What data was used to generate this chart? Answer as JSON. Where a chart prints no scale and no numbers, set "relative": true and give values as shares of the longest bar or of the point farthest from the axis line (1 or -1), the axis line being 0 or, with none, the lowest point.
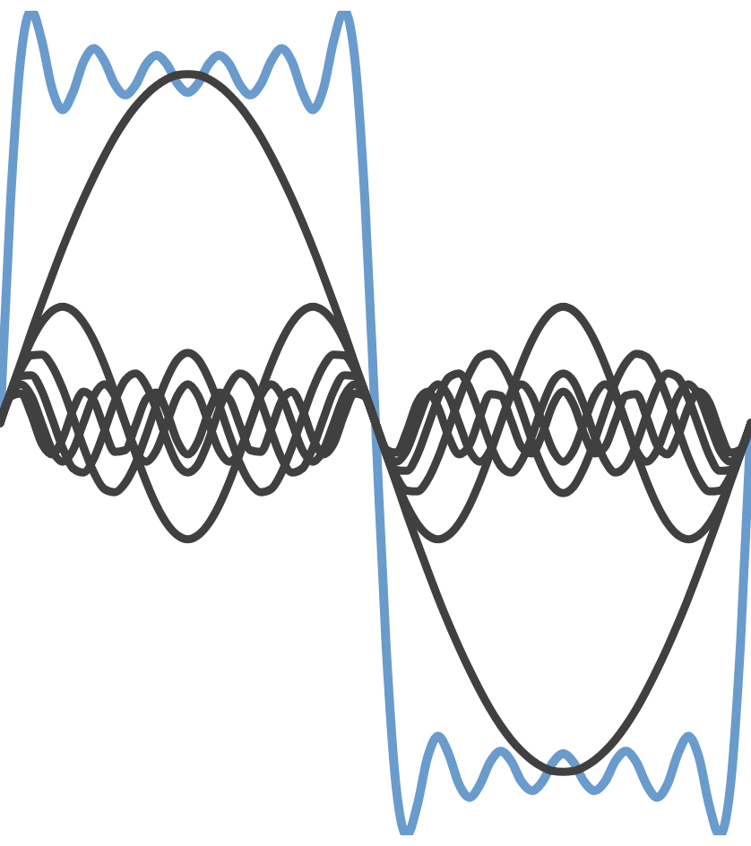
{
  "chart_data": {
    "type": "line",
    "relative": true,
    "categories": [
      null,
      null,
      null,
      null,
      null,
      null,
      null,
      null,
      null,
      null,
      null,
      null,
      null,
      null,
      null,
      null,
      null,
      null,
      null,
      null,
      null,
      null,
      null,
      null,
      null,
      null,
      null,
      null,
      null,
      null,
      null,
      null,
      null,
      null,
      null,
      null,
      null,
      null,
      null,
      null,
      null,
      null,
      null,
      null,
      null,
      null,
      null,
      null,
      null,
      null,
      null,
      null,
      null,
      null,
      null,
      null,
      null,
      null,
      null,
      null,
      null,
      null,
      null,
      null,
      null,
      null,
      null,
      null,
      null,
      null,
      null,
      null,
      null
    ],
    "series": [
      {
        "color": "#6a9bcd",
        "values": [
          0.5,
          0.766,
          0.944,
          1,
          0.964,
          0.905,
          0.88,
          0.901,
          0.938,
          0.954,
          0.939,
          0.911,
          0.898,
          0.91,
          0.935,
          0.946,
          0.935,
          0.912,
          0.901,
          0.912,
          0.935,
          0.946,
          0.935,
          0.91,
          0.898,
          0.911,
          0.939,
          0.954,
          0.938,
          0.901,
          0.88,
          0.905,
          0.964,
          1,
          0.944,
          0.766,
          0.5,
          0.234,
          0.056,
          0,
          0.036,
          0.095,
          0.12,
          0.099,
          0.062,
          0.046,
          0.061,
          0.089,
          0.102,
          0.09,
          0.065,
          0.054,
          0.065,
          0.088,
          0.099,
          0.088,
          0.065,
          0.054,
          0.065,
          0.09,
          0.102,
          0.089,
          0.061,
          0.046,
          0.062,
          0.099,
          0.12,
          0.095,
          0.036,
          0,
          0.056,
          0.234,
          0.5
        ]
      },
      {
        "color": "#404040",
        "values": [
          0.5,
          0.537,
          0.573,
          0.61,
          0.645,
          0.679,
          0.712,
          0.743,
          0.772,
          0.799,
          0.824,
          0.847,
          0.867,
          0.884,
          0.898,
          0.909,
          0.917,
          0.922,
          0.923,
          0.922,
          0.917,
          0.909,
          0.898,
          0.884,
          0.867,
          0.847,
          0.824,
          0.799,
          0.772,
          0.743,
          0.712,
          0.679,
          0.645,
          0.61,
          0.573,
          0.537,
          0.5,
          0.463,
          0.427,
          0.39,
          0.355,
          0.321,
          0.288,
          0.257,
          0.228,
          0.201,
          0.176,
          0.153,
          0.133,
          0.116,
          0.102,
          0.091,
          0.083,
          0.078,
          0.077,
          0.078,
          0.083,
          0.091,
          0.102,
          0.116,
          0.133,
          0.153,
          0.176,
          0.201,
          0.228,
          0.257,
          0.288,
          0.321,
          0.355,
          0.39,
          0.427,
          0.463,
          0.5
        ]
      },
      {
        "color": "#404040",
        "values": [
          0.5,
          0.537,
          0.571,
          0.6,
          0.622,
          0.636,
          0.641,
          0.636,
          0.622,
          0.6,
          0.571,
          0.537,
          0.5,
          0.463,
          0.429,
          0.4,
          0.378,
          0.364,
          0.359,
          0.364,
          0.378,
          0.4,
          0.429,
          0.463,
          0.5,
          0.537,
          0.571,
          0.6,
          0.622,
          0.636,
          0.641,
          0.636,
          0.622,
          0.6,
          0.571,
          0.537,
          0.5,
          0.463,
          0.429,
          0.4,
          0.378,
          0.364,
          0.359,
          0.364,
          0.378,
          0.4,
          0.429,
          0.463,
          0.5,
          0.537,
          0.571,
          0.6,
          0.622,
          0.636,
          0.641,
          0.636,
          0.622,
          0.6,
          0.571,
          0.537,
          0.5,
          0.463,
          0.429,
          0.4,
          0.378,
          0.364,
          0.359,
          0.364,
          0.378,
          0.4,
          0.429,
          0.463,
          0.5
        ]
      },
      {
        "color": "#404040",
        "values": [
          0.5,
          0.536,
          0.565,
          0.582,
          0.583,
          0.569,
          0.542,
          0.507,
          0.471,
          0.44,
          0.42,
          0.416,
          0.427,
          0.451,
          0.485,
          0.522,
          0.554,
          0.577,
          0.585,
          0.577,
          0.554,
          0.522,
          0.485,
          0.451,
          0.427,
          0.416,
          0.42,
          0.44,
          0.471,
          0.507,
          0.542,
          0.569,
          0.583,
          0.582,
          0.565,
          0.536,
          0.5,
          0.464,
          0.435,
          0.418,
          0.417,
          0.431,
          0.458,
          0.493,
          0.529,
          0.56,
          0.58,
          0.584,
          0.573,
          0.549,
          0.515,
          0.478,
          0.446,
          0.423,
          0.415,
          0.423,
          0.446,
          0.478,
          0.515,
          0.549,
          0.573,
          0.584,
          0.58,
          0.56,
          0.529,
          0.493,
          0.458,
          0.431,
          0.417,
          0.418,
          0.435,
          0.464,
          0.5
        ]
      },
      {
        "color": "#404040",
        "values": [
          0.5,
          0.535,
          0.557,
          0.558,
          0.539,
          0.505,
          0.47,
          0.445,
          0.44,
          0.457,
          0.49,
          0.526,
          0.552,
          0.56,
          0.546,
          0.516,
          0.479,
          0.45,
          0.44,
          0.45,
          0.479,
          0.516,
          0.546,
          0.56,
          0.552,
          0.526,
          0.49,
          0.457,
          0.44,
          0.445,
          0.47,
          0.505,
          0.539,
          0.558,
          0.557,
          0.535,
          0.5,
          0.465,
          0.443,
          0.442,
          0.461,
          0.495,
          0.53,
          0.555,
          0.56,
          0.543,
          0.51,
          0.474,
          0.448,
          0.44,
          0.454,
          0.484,
          0.521,
          0.55,
          0.56,
          0.55,
          0.521,
          0.484,
          0.454,
          0.44,
          0.448,
          0.474,
          0.51,
          0.543,
          0.56,
          0.555,
          0.53,
          0.495,
          0.461,
          0.442,
          0.443,
          0.465,
          0.5
        ]
      },
      {
        "color": "#404040",
        "values": [
          0.5,
          0.533,
          0.547,
          0.533,
          0.5,
          0.467,
          0.453,
          0.467,
          0.5,
          0.533,
          0.547,
          0.533,
          0.5,
          0.467,
          0.453,
          0.467,
          0.5,
          0.533,
          0.547,
          0.533,
          0.5,
          0.467,
          0.453,
          0.467,
          0.5,
          0.533,
          0.547,
          0.533,
          0.5,
          0.467,
          0.453,
          0.467,
          0.5,
          0.533,
          0.547,
          0.533,
          0.5,
          0.467,
          0.453,
          0.467,
          0.5,
          0.533,
          0.547,
          0.533,
          0.5,
          0.467,
          0.453,
          0.467,
          0.5,
          0.533,
          0.547,
          0.533,
          0.5,
          0.467,
          0.453,
          0.467,
          0.5,
          0.533,
          0.547,
          0.533,
          0.5,
          0.467,
          0.453,
          0.467,
          0.5,
          0.533,
          0.547,
          0.533,
          0.5,
          0.467,
          0.453,
          0.467,
          0.5
        ]
      },
      {
        "color": "#404040",
        "values": [
          0.5,
          0.532,
          0.536,
          0.51,
          0.475,
          0.462,
          0.481,
          0.516,
          0.538,
          0.527,
          0.493,
          0.465,
          0.467,
          0.497,
          0.529,
          0.537,
          0.513,
          0.478,
          0.462,
          0.478,
          0.513,
          0.537,
          0.529,
          0.497,
          0.467,
          0.465,
          0.493,
          0.527,
          0.538,
          0.516,
          0.481,
          0.462,
          0.475,
          0.51,
          0.536,
          0.532,
          0.5,
          0.468,
          0.464,
          0.49,
          0.525,
          0.538,
          0.519,
          0.484,
          0.462,
          0.473,
          0.507,
          0.535,
          0.533,
          0.503,
          0.471,
          0.463,
          0.487,
          0.522,
          0.538,
          0.522,
          0.487,
          0.463,
          0.471,
          0.503,
          0.533,
          0.535,
          0.507,
          0.473,
          0.462,
          0.484,
          0.519,
          0.538,
          0.525,
          0.49,
          0.464,
          0.468,
          0.5
        ]
      }
    ]
  }
}
